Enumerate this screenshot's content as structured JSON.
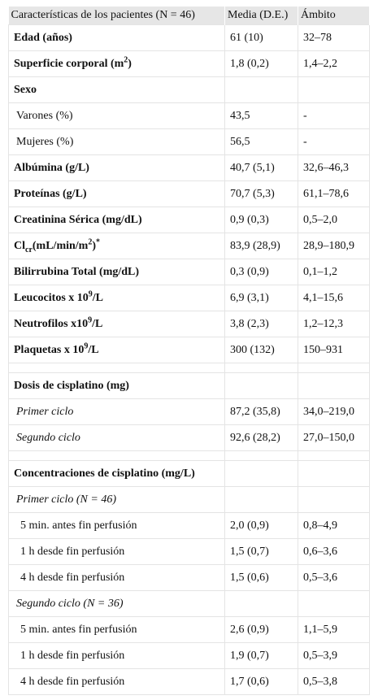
{
  "table": {
    "header": [
      "Características de los pacientes (N = 46)",
      "Media (D.E.)",
      "Ámbito"
    ],
    "rows": [
      {
        "kind": "heading",
        "label": [
          {
            "t": "Edad (años)"
          }
        ],
        "media": "61 (10)",
        "range": "32–78"
      },
      {
        "kind": "heading",
        "label": [
          {
            "t": "Superficie corporal (m"
          },
          {
            "t": "2",
            "s": "sup"
          },
          {
            "t": ")"
          }
        ],
        "media": "1,8 (0,2)",
        "range": "1,4–2,2"
      },
      {
        "kind": "heading",
        "label": [
          {
            "t": "Sexo"
          }
        ]
      },
      {
        "kind": "sub",
        "label": [
          {
            "t": "Varones (%)"
          }
        ],
        "media": "43,5",
        "range": "-"
      },
      {
        "kind": "sub",
        "label": [
          {
            "t": "Mujeres (%)"
          }
        ],
        "media": "56,5",
        "range": "-"
      },
      {
        "kind": "heading",
        "label": [
          {
            "t": "Albúmina (g/L)"
          }
        ],
        "media": "40,7 (5,1)",
        "range": "32,6–46,3"
      },
      {
        "kind": "heading",
        "label": [
          {
            "t": "Proteínas (g/L)"
          }
        ],
        "media": "70,7 (5,3)",
        "range": "61,1–78,6"
      },
      {
        "kind": "heading",
        "label": [
          {
            "t": "Creatinina Sérica (mg/dL)"
          }
        ],
        "media": "0,9 (0,3)",
        "range": "0,5–2,0"
      },
      {
        "kind": "heading",
        "label": [
          {
            "t": "Cl"
          },
          {
            "t": "cr",
            "s": "sub"
          },
          {
            "t": "(mL/min/m"
          },
          {
            "t": "2",
            "s": "sup"
          },
          {
            "t": ")"
          },
          {
            "t": "*",
            "s": "sup"
          }
        ],
        "media": "83,9 (28,9)",
        "range": "28,9–180,9"
      },
      {
        "kind": "heading",
        "label": [
          {
            "t": "Bilirrubina Total (mg/dL)"
          }
        ],
        "media": "0,3 (0,9)",
        "range": "0,1–1,2"
      },
      {
        "kind": "heading",
        "label": [
          {
            "t": "Leucocitos x 10"
          },
          {
            "t": "9",
            "s": "sup"
          },
          {
            "t": "/L"
          }
        ],
        "media": "6,9 (3,1)",
        "range": "4,1–15,6"
      },
      {
        "kind": "heading",
        "label": [
          {
            "t": "Neutrofilos x10"
          },
          {
            "t": "9",
            "s": "sup"
          },
          {
            "t": "/L"
          }
        ],
        "media": "3,8 (2,3)",
        "range": "1,2–12,3"
      },
      {
        "kind": "heading",
        "label": [
          {
            "t": "Plaquetas x 10"
          },
          {
            "t": "9",
            "s": "sup"
          },
          {
            "t": "/L"
          }
        ],
        "media": "300 (132)",
        "range": "150–931"
      },
      {
        "kind": "spacer"
      },
      {
        "kind": "heading",
        "label": [
          {
            "t": "Dosis de cisplatino (mg)"
          }
        ]
      },
      {
        "kind": "italic-sub",
        "label": [
          {
            "t": "Primer ciclo"
          }
        ],
        "media": "87,2 (35,8)",
        "range": "34,0–219,0"
      },
      {
        "kind": "italic-sub",
        "label": [
          {
            "t": "Segundo ciclo"
          }
        ],
        "media": "92,6 (28,2)",
        "range": "27,0–150,0"
      },
      {
        "kind": "spacer"
      },
      {
        "kind": "heading",
        "label": [
          {
            "t": "Concentraciones de cisplatino (mg/L)"
          }
        ]
      },
      {
        "kind": "italic-sub",
        "label": [
          {
            "t": "Primer ciclo (N = 46)"
          }
        ]
      },
      {
        "kind": "detail",
        "label": [
          {
            "t": "5 min. antes fin perfusión"
          }
        ],
        "media": "2,0 (0,9)",
        "range": "0,8–4,9"
      },
      {
        "kind": "detail",
        "label": [
          {
            "t": "1 h desde fin perfusión"
          }
        ],
        "media": "1,5 (0,7)",
        "range": "0,6–3,6"
      },
      {
        "kind": "detail",
        "label": [
          {
            "t": "4 h desde fin perfusión"
          }
        ],
        "media": "1,5 (0,6)",
        "range": "0,5–3,6"
      },
      {
        "kind": "italic-sub",
        "label": [
          {
            "t": "Segundo ciclo (N = 36)"
          }
        ]
      },
      {
        "kind": "detail",
        "label": [
          {
            "t": "5 min. antes fin perfusión"
          }
        ],
        "media": "2,6 (0,9)",
        "range": "1,1–5,9"
      },
      {
        "kind": "detail",
        "label": [
          {
            "t": "1 h desde fin perfusión"
          }
        ],
        "media": "1,9 (0,7)",
        "range": "0,5–3,9"
      },
      {
        "kind": "detail",
        "label": [
          {
            "t": "4 h desde fin perfusión"
          }
        ],
        "media": "1,7 (0,6)",
        "range": "0,5–3,8"
      }
    ]
  }
}
